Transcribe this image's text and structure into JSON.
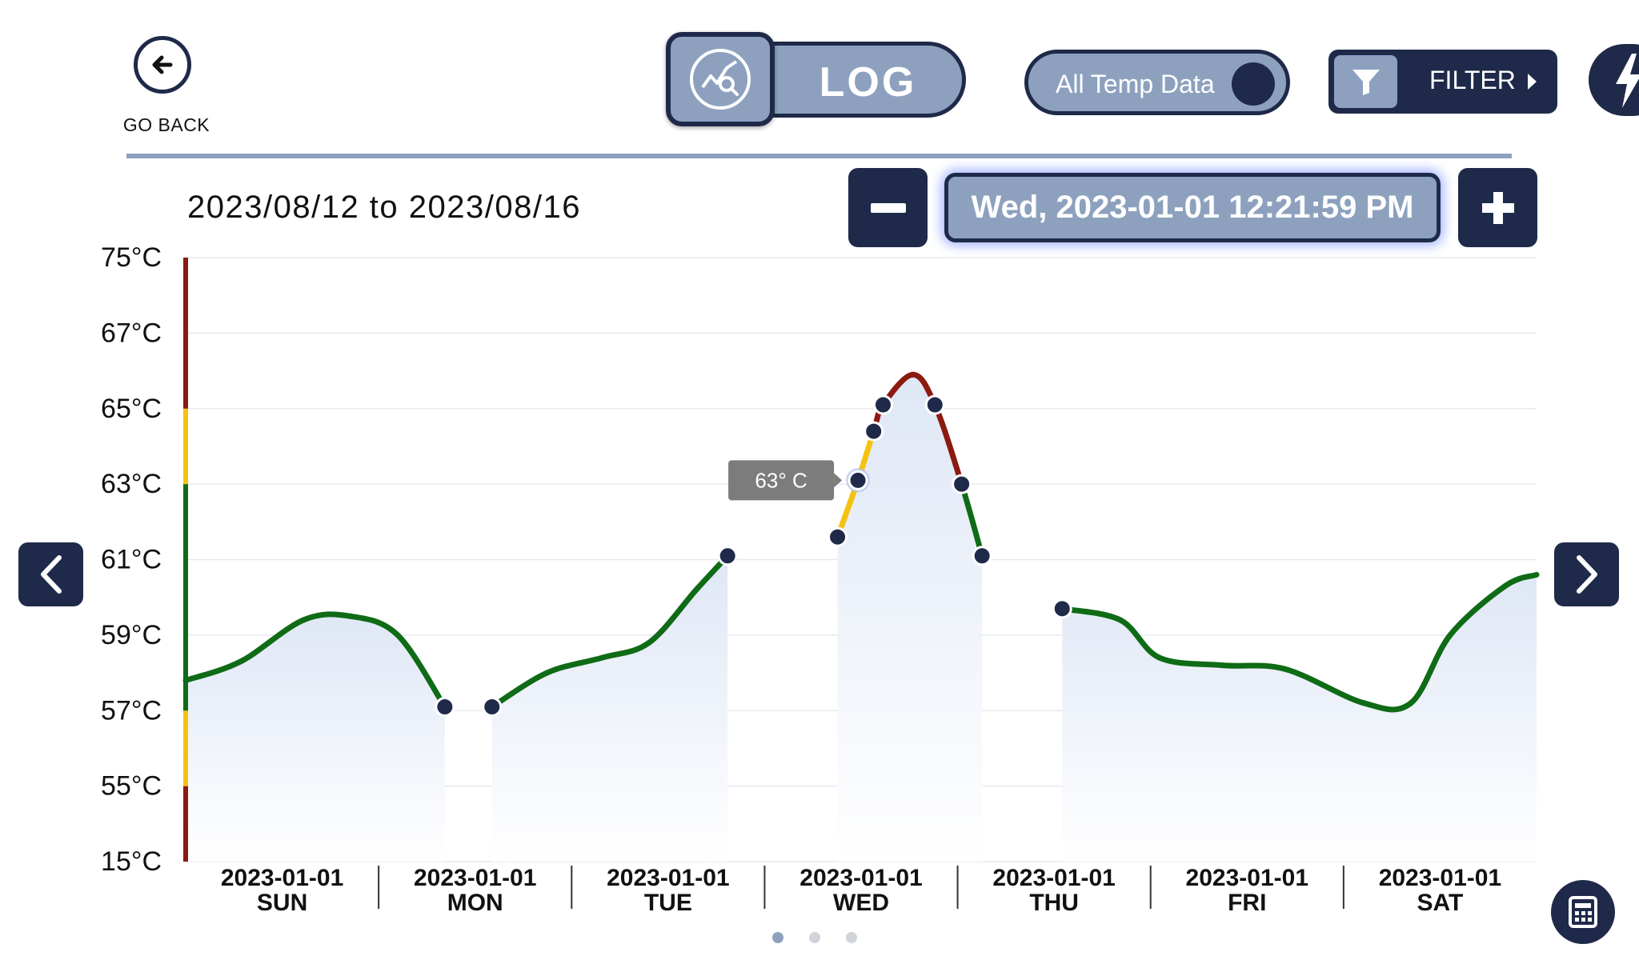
{
  "header": {
    "go_back_label": "GO BACK",
    "log_label": "LOG",
    "toggle_label": "All Temp Data",
    "filter_label": "FILTER"
  },
  "range_text": "2023/08/12 to 2023/08/16",
  "datetime_text": "Wed, 2023-01-01 12:21:59 PM",
  "tooltip_text": "63° C",
  "colors": {
    "navy": "#1f2a4a",
    "steel": "#8da1bf",
    "ok": "#0f6b16",
    "warn": "#f4c211",
    "alarm": "#8b1a10",
    "fill": "#e6ecf7"
  },
  "chart_data": {
    "type": "line",
    "y_ticks": [
      "75°C",
      "67°C",
      "65°C",
      "63°C",
      "61°C",
      "59°C",
      "57°C",
      "55°C",
      "15°C"
    ],
    "y_tick_values": [
      75,
      67,
      65,
      63,
      61,
      59,
      57,
      55,
      15
    ],
    "categories": [
      {
        "date": "2023-01-01",
        "day": "SUN"
      },
      {
        "date": "2023-01-01",
        "day": "MON"
      },
      {
        "date": "2023-01-01",
        "day": "TUE"
      },
      {
        "date": "2023-01-01",
        "day": "WED"
      },
      {
        "date": "2023-01-01",
        "day": "THU"
      },
      {
        "date": "2023-01-01",
        "day": "FRI"
      },
      {
        "date": "2023-01-01",
        "day": "SAT"
      }
    ],
    "segments": [
      {
        "points": [
          [
            0.0,
            57.8
          ],
          [
            0.35,
            58.3
          ],
          [
            0.75,
            59.4
          ],
          [
            1.05,
            59.5
          ],
          [
            1.35,
            59.0
          ],
          [
            1.65,
            57.1
          ]
        ],
        "markers": [
          5
        ]
      },
      {
        "points": [
          [
            1.95,
            57.1
          ],
          [
            2.3,
            58.0
          ],
          [
            2.65,
            58.4
          ],
          [
            2.95,
            58.8
          ],
          [
            3.25,
            60.2
          ],
          [
            3.45,
            61.1
          ]
        ],
        "markers": [
          0,
          5
        ]
      },
      {
        "points": [
          [
            4.15,
            61.6
          ],
          [
            4.28,
            63.1
          ],
          [
            4.38,
            64.4
          ],
          [
            4.44,
            65.1
          ],
          [
            4.63,
            65.9
          ],
          [
            4.77,
            65.1
          ],
          [
            4.94,
            63.0
          ],
          [
            5.07,
            61.1
          ]
        ],
        "markers": [
          0,
          1,
          2,
          3,
          5,
          6,
          7
        ]
      },
      {
        "points": [
          [
            5.58,
            59.7
          ],
          [
            5.95,
            59.4
          ],
          [
            6.2,
            58.4
          ],
          [
            6.6,
            58.2
          ],
          [
            7.0,
            58.1
          ],
          [
            7.5,
            57.2
          ],
          [
            7.8,
            57.2
          ],
          [
            8.05,
            59.0
          ],
          [
            8.4,
            60.3
          ],
          [
            8.6,
            60.6
          ]
        ],
        "markers": [
          0
        ]
      }
    ],
    "tooltip": {
      "x": 4.28,
      "y": 63.1,
      "label": "63° C"
    },
    "status_bands": [
      {
        "from": 15,
        "to": 55,
        "status": "alarm"
      },
      {
        "from": 55,
        "to": 57,
        "status": "warn"
      },
      {
        "from": 57,
        "to": 63,
        "status": "ok"
      },
      {
        "from": 63,
        "to": 65,
        "status": "warn"
      },
      {
        "from": 65,
        "to": 75,
        "status": "alarm"
      }
    ],
    "grid": true
  },
  "pagination": {
    "pages": 3,
    "current": 1
  }
}
